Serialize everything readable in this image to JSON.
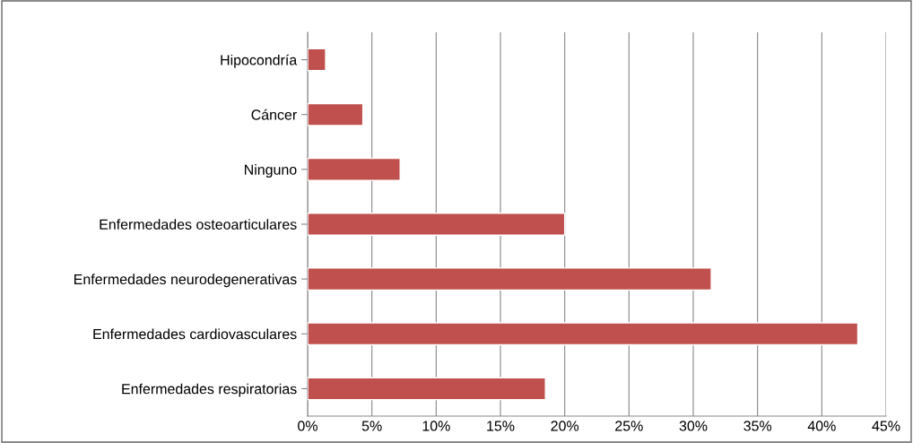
{
  "chart_data": {
    "type": "bar",
    "orientation": "horizontal",
    "categories": [
      "Hipocondría",
      "Cáncer",
      "Ninguno",
      "Enfermedades osteoarticulares",
      "Enfermedades neurodegenerativas",
      "Enfermedades cardiovasculares",
      "Enfermedades respiratorias"
    ],
    "values": [
      1.4,
      4.3,
      7.2,
      20.0,
      31.4,
      42.8,
      18.5
    ],
    "color": "#c0504d",
    "xlim": [
      0,
      45
    ],
    "xticks": [
      {
        "value": 0,
        "label": "0%"
      },
      {
        "value": 5,
        "label": "5%"
      },
      {
        "value": 10,
        "label": "10%"
      },
      {
        "value": 15,
        "label": "15%"
      },
      {
        "value": 20,
        "label": "20%"
      },
      {
        "value": 25,
        "label": "25%"
      },
      {
        "value": 30,
        "label": "30%"
      },
      {
        "value": 35,
        "label": "35%"
      },
      {
        "value": 40,
        "label": "40%"
      },
      {
        "value": 45,
        "label": "45%"
      }
    ],
    "grid": "x",
    "legend": false
  }
}
